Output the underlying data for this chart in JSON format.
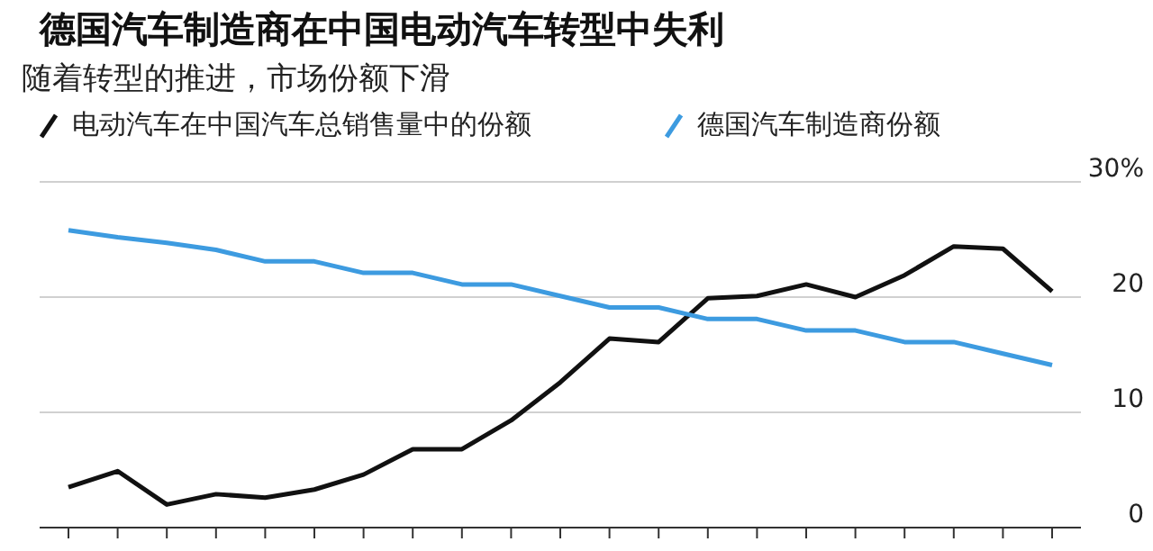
{
  "chart_data": {
    "type": "line",
    "title": "德国汽车制造商在中国电动汽车转型中失利",
    "subtitle": "随着转型的推进，市场份额下滑",
    "categories": [
      null,
      null,
      null,
      null,
      null,
      null,
      null,
      null,
      null,
      null,
      null,
      null,
      null,
      null,
      null,
      null,
      null,
      null,
      null,
      null,
      null
    ],
    "series": [
      {
        "name": "电动汽车在中国汽车总销售量中的份额",
        "color": "#111111",
        "values": [
          3.5,
          4.9,
          2.0,
          2.9,
          2.6,
          3.3,
          4.6,
          6.8,
          6.8,
          9.3,
          12.6,
          16.4,
          16.1,
          19.9,
          20.1,
          21.1,
          20.0,
          21.9,
          24.4,
          24.2,
          20.5
        ]
      },
      {
        "name": "德国汽车制造商份额",
        "color": "#3d9be0",
        "values": [
          25.8,
          25.2,
          24.7,
          24.1,
          23.1,
          23.1,
          22.1,
          22.1,
          21.1,
          21.1,
          20.1,
          19.1,
          19.1,
          18.1,
          18.1,
          17.1,
          17.1,
          16.1,
          16.1,
          15.1,
          14.1
        ]
      }
    ],
    "ylim": [
      0,
      30
    ],
    "yticks": [
      0,
      10,
      20,
      {
        "value": 30,
        "label": "30%"
      }
    ],
    "grid": "y",
    "legend": "top left",
    "marker": "none",
    "line_style": "solid"
  }
}
